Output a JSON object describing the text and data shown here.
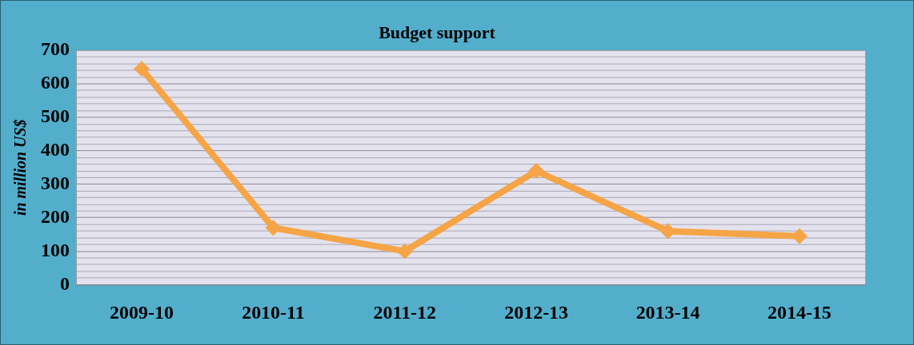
{
  "chart_data": {
    "type": "line",
    "title": "Budget support",
    "ylabel": "in million US$",
    "categories": [
      "2009-10",
      "2010-11",
      "2011-12",
      "2012-13",
      "2013-14",
      "2014-15"
    ],
    "series": [
      {
        "color": "#f5a446",
        "values": [
          645,
          170,
          100,
          340,
          160,
          145
        ]
      }
    ],
    "ylim": [
      0,
      700
    ],
    "yticks": [
      0,
      {
        "value": 20,
        "label": null
      },
      {
        "value": 40,
        "label": null
      },
      {
        "value": 60,
        "label": null
      },
      {
        "value": 80,
        "label": null
      },
      100,
      {
        "value": 120,
        "label": null
      },
      {
        "value": 140,
        "label": null
      },
      {
        "value": 160,
        "label": null
      },
      {
        "value": 180,
        "label": null
      },
      200,
      {
        "value": 220,
        "label": null
      },
      {
        "value": 240,
        "label": null
      },
      {
        "value": 260,
        "label": null
      },
      {
        "value": 280,
        "label": null
      },
      300,
      {
        "value": 320,
        "label": null
      },
      {
        "value": 340,
        "label": null
      },
      {
        "value": 360,
        "label": null
      },
      {
        "value": 380,
        "label": null
      },
      400,
      {
        "value": 420,
        "label": null
      },
      {
        "value": 440,
        "label": null
      },
      {
        "value": 460,
        "label": null
      },
      {
        "value": 480,
        "label": null
      },
      500,
      {
        "value": 520,
        "label": null
      },
      {
        "value": 540,
        "label": null
      },
      {
        "value": 560,
        "label": null
      },
      {
        "value": 580,
        "label": null
      },
      600,
      {
        "value": 620,
        "label": null
      },
      {
        "value": 640,
        "label": null
      },
      {
        "value": 660,
        "label": null
      },
      {
        "value": 680,
        "label": null
      },
      700
    ],
    "grid": "y",
    "legend": false,
    "marker": "diamond",
    "line_style": "solid"
  }
}
